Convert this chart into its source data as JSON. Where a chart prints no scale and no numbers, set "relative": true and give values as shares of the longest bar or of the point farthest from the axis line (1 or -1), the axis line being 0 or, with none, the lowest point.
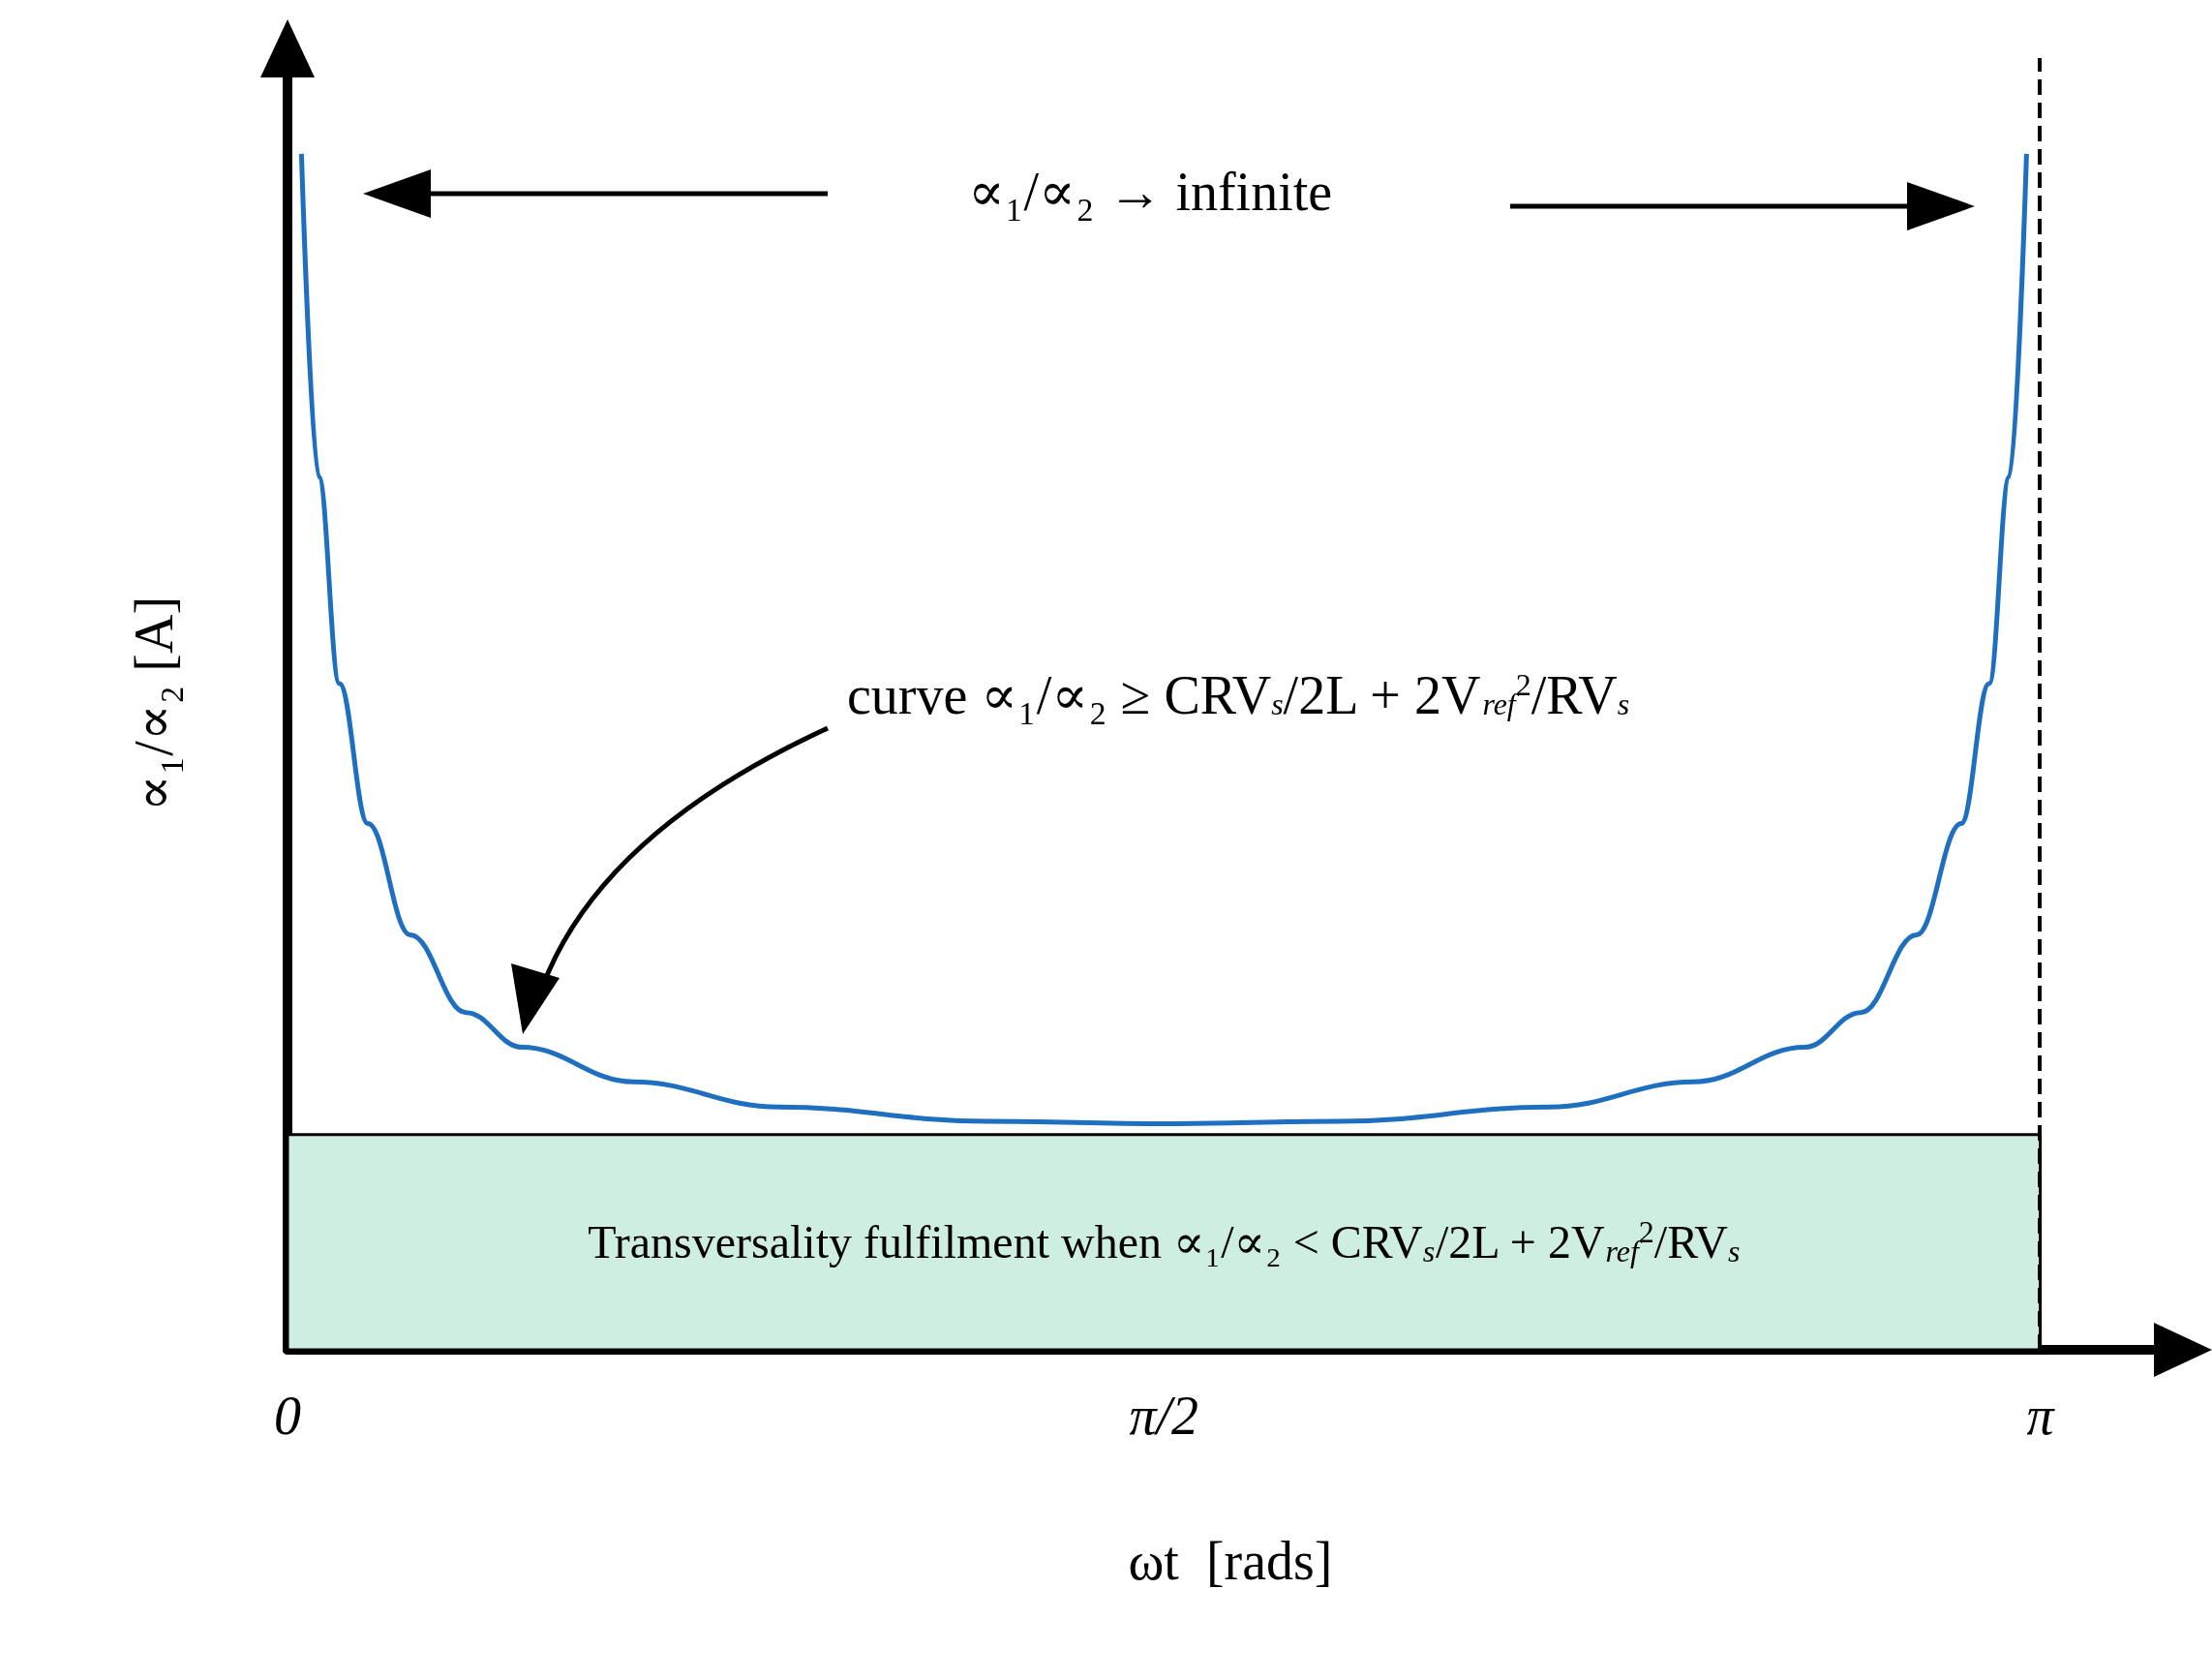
{
  "chart_data": {
    "type": "line",
    "relative": true,
    "xlabel": "ωt  [rads]",
    "ylabel": "∝₁/∝₂ [A]",
    "xlim": [
      0,
      3.38
    ],
    "xticks": [
      {
        "value": 0,
        "label": "0"
      },
      {
        "value": 1.5708,
        "label": "π/2"
      },
      {
        "value": 3.1416,
        "label": "π"
      }
    ],
    "series": [
      {
        "color": "#1f6fc0",
        "x": [
          0.025,
          0.056,
          0.093,
          0.144,
          0.22,
          0.32,
          0.42,
          0.62,
          0.88,
          1.255,
          1.5708,
          1.887,
          2.262,
          2.52,
          2.72,
          2.82,
          2.92,
          3.0,
          3.05,
          3.086,
          3.117
        ],
        "values": [
          1.0,
          0.73,
          0.557,
          0.44,
          0.347,
          0.282,
          0.253,
          0.224,
          0.203,
          0.191,
          0.189,
          0.191,
          0.203,
          0.224,
          0.253,
          0.282,
          0.347,
          0.44,
          0.557,
          0.73,
          1.0
        ]
      }
    ],
    "ref_lines": [
      {
        "axis": "x",
        "value": 3.1416,
        "color": "#000000",
        "line_style": "dashed"
      }
    ],
    "bands": [
      {
        "axis": "y",
        "from": 0,
        "to": 0.18,
        "color": "#cdeee0",
        "label": "Transversality fulfilment when ∝₁/∝₂ < CRV$_{s}$/2L + 2V$_{ref}$$^{2}$/RV$_{s}$"
      }
    ],
    "annotations": [
      "∝₁/∝₂ → infinite",
      "curve ∝₁/∝₂ ≥ CRV$_{s}$/2L + 2V$_{ref}$$^{2}$/RV$_{s}$"
    ],
    "grid": false,
    "marker": "none",
    "line_style": "solid"
  }
}
